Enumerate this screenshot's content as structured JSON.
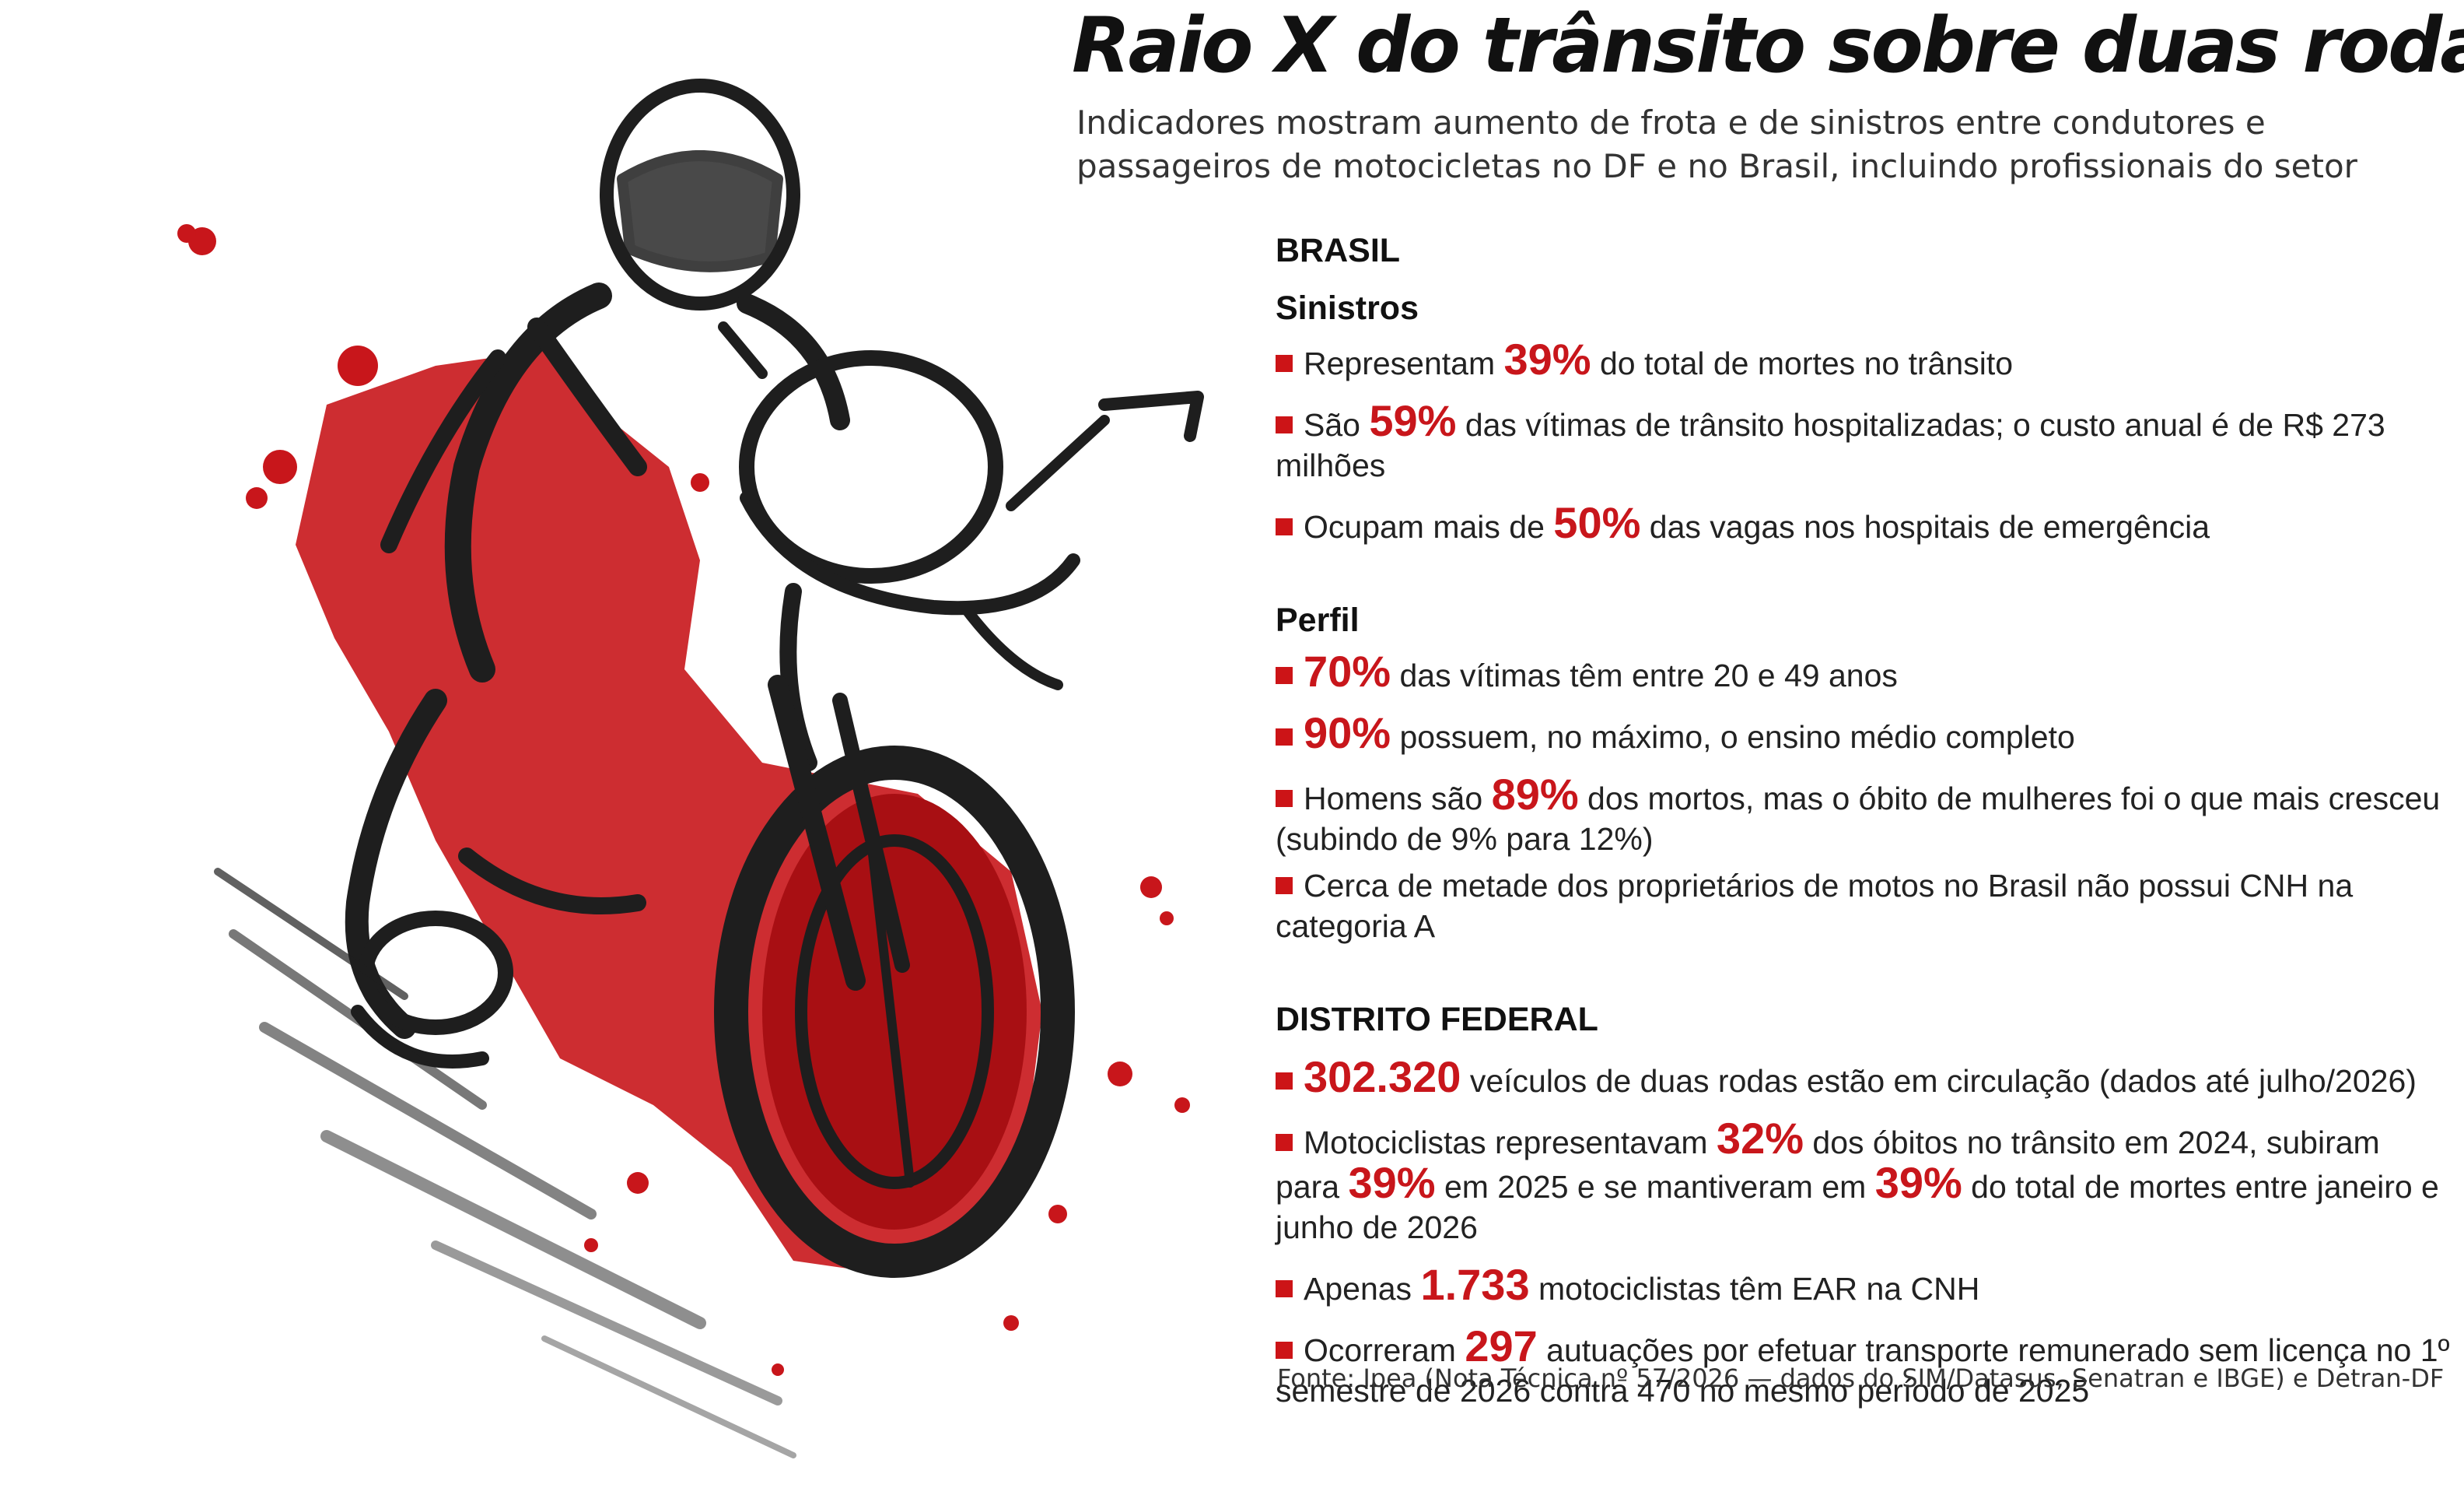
{
  "title": "Raio X do trânsito sobre duas rodas",
  "subtitle": "Indicadores mostram aumento de frota e de sinistros entre condutores e passageiros de motocicletas no DF e no Brasil, incluindo profissionais do setor",
  "brasil": {
    "heading": "BRASIL",
    "sinistros": {
      "heading": "Sinistros",
      "items": [
        {
          "pre": "Representam ",
          "hl": "39%",
          "post": " do total de mortes no trânsito"
        },
        {
          "pre": "São ",
          "hl": "59%",
          "post": " das vítimas de trânsito hospitalizadas; o custo anual é de R$ 273 milhões"
        },
        {
          "pre": "Ocupam mais de ",
          "hl": "50%",
          "post": " das vagas nos hospitais de emergência"
        }
      ]
    },
    "perfil": {
      "heading": "Perfil",
      "items": [
        {
          "pre": "",
          "hl": "70%",
          "post": " das vítimas têm entre 20 e 49 anos"
        },
        {
          "pre": "",
          "hl": "90%",
          "post": " possuem, no máximo, o ensino médio completo"
        },
        {
          "pre": "Homens são ",
          "hl": "89%",
          "post": " dos mortos, mas o óbito de mulheres foi o que mais cresceu (subindo de 9% para 12%)"
        },
        {
          "pre": "Cerca de metade dos proprietários de motos no Brasil não possui CNH na categoria A",
          "hl": "",
          "post": ""
        }
      ]
    }
  },
  "df": {
    "heading": "DISTRITO FEDERAL",
    "items": [
      {
        "hl": "302.320",
        "post": " veículos de duas rodas estão em circulação (dados até julho/2026)"
      },
      {
        "pre": "Motociclistas representavam ",
        "hl1": "32%",
        "mid1": " dos óbitos no trânsito em 2024, subiram para ",
        "hl2": "39%",
        "mid2": " em 2025 e se mantiveram em ",
        "hl3": "39%",
        "post": " do total de mortes entre janeiro e junho de 2026"
      },
      {
        "pre": "Apenas ",
        "hl": "1.733",
        "post": " motociclistas têm EAR na CNH"
      },
      {
        "pre": "Ocorreram ",
        "hl": "297",
        "post": " autuações por efetuar transporte remunerado sem licença no 1º semestre de 2026 contra 470 no mesmo período de 2025"
      }
    ]
  },
  "source": "Fonte: Ipea (Nota Técnica nº 57/2026 — dados do SIM/Datasus, Senatran e IBGE) e Detran-DF",
  "colors": {
    "accent": "#c8161b",
    "ink": "#1a1a1a"
  }
}
